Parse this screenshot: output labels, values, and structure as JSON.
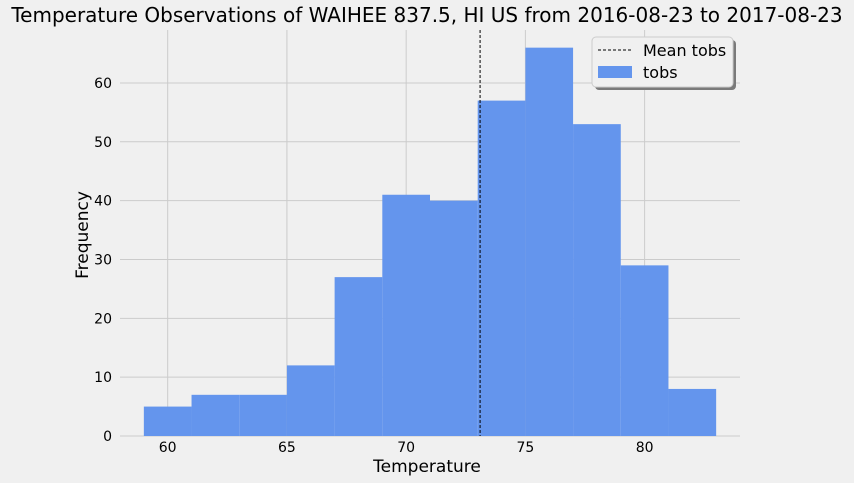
{
  "chart_data": {
    "type": "bar",
    "title": "Temperature Observations of WAIHEE 837.5, HI US from 2016-08-23 to 2017-08-23",
    "xlabel": "Temperature",
    "ylabel": "Frequency",
    "xlim": [
      58,
      84
    ],
    "ylim": [
      0,
      69
    ],
    "xticks": [
      60,
      65,
      70,
      75,
      80
    ],
    "yticks": [
      0,
      10,
      20,
      30,
      40,
      50,
      60
    ],
    "bins": [
      {
        "x0": 59,
        "x1": 61,
        "count": 5
      },
      {
        "x0": 61,
        "x1": 63,
        "count": 7
      },
      {
        "x0": 63,
        "x1": 65,
        "count": 7
      },
      {
        "x0": 65,
        "x1": 67,
        "count": 12
      },
      {
        "x0": 67,
        "x1": 69,
        "count": 27
      },
      {
        "x0": 69,
        "x1": 71,
        "count": 41
      },
      {
        "x0": 71,
        "x1": 73,
        "count": 40
      },
      {
        "x0": 73,
        "x1": 75,
        "count": 57
      },
      {
        "x0": 75,
        "x1": 77,
        "count": 66
      },
      {
        "x0": 77,
        "x1": 79,
        "count": 53
      },
      {
        "x0": 79,
        "x1": 81,
        "count": 29
      },
      {
        "x0": 81,
        "x1": 83,
        "count": 8
      }
    ],
    "mean_line": {
      "x": 73.1,
      "label": "Mean tobs",
      "style": "dashed",
      "color": "#000000"
    },
    "series": [
      {
        "name": "tobs",
        "color": "#6495ed"
      }
    ],
    "grid": true,
    "legend_position": "top-right"
  }
}
